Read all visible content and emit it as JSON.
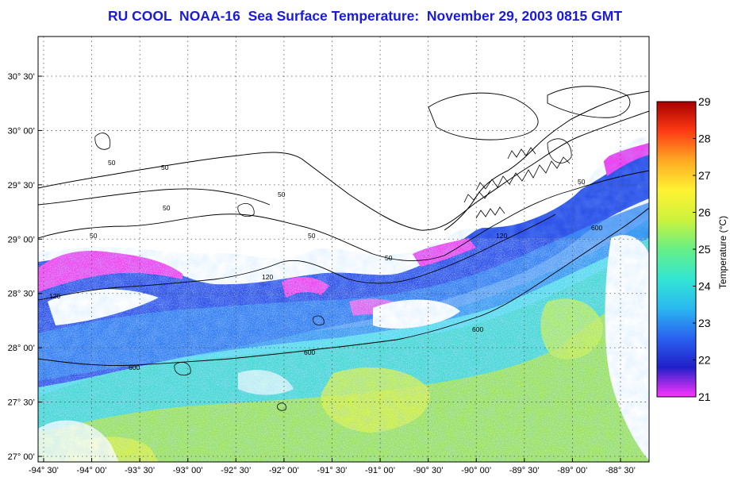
{
  "title": "RU COOL  NOAA-16  Sea Surface Temperature:  November 29, 2003 0815 GMT",
  "map": {
    "lat_labels": [
      "30° 30’",
      "30° 00’",
      "29° 30’",
      "29° 00’",
      "28° 30’",
      "28° 00’",
      "27° 30’",
      "27° 00’"
    ],
    "lon_labels": [
      "-94° 30’",
      "-94° 00’",
      "-93° 30’",
      "-93° 00’",
      "-92° 30’",
      "-92° 00’",
      "-91° 30’",
      "-91° 00’",
      "-90° 30’",
      "-90° 00’",
      "-89° 30’",
      "-89° 00’",
      "-88° 30’"
    ],
    "contour_labels": {
      "c50": "50",
      "c120": "120",
      "c600": "600"
    }
  },
  "colorbar": {
    "label": "Temperature (°C)",
    "ticks": [
      "29",
      "28",
      "27",
      "26",
      "25",
      "24",
      "23",
      "22",
      "21"
    ],
    "range": [
      21,
      29
    ],
    "colors": [
      "#ff33ff",
      "#2020c8",
      "#2a62f0",
      "#2ab8f0",
      "#33e6d2",
      "#66f086",
      "#cdf23c",
      "#fff233",
      "#ffaa22",
      "#ff3b14",
      "#a80000"
    ]
  }
}
